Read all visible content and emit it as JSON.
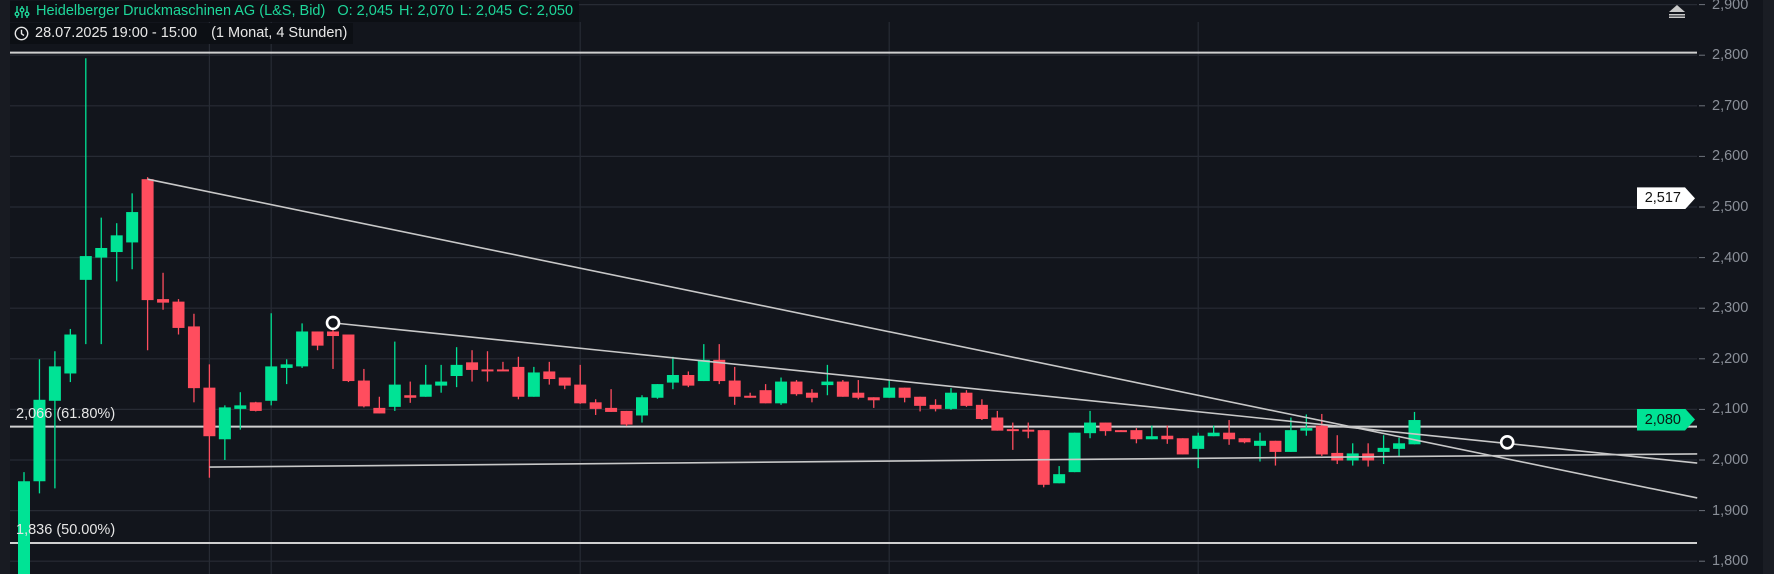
{
  "header": {
    "title": "Heidelberger Druckmaschinen AG (L&S, Bid)",
    "ohlc": {
      "open": "O: 2,045",
      "high": "H: 2,070",
      "low": "L: 2,045",
      "close": "C: 2,050"
    },
    "time_range": "28.07.2025 19:00 - 15:00",
    "period": "(1 Monat, 4 Stunden)",
    "icons": [
      "indicator-sliders-icon",
      "clock-icon",
      "collapse-triangle-icon"
    ]
  },
  "colors": {
    "up": "#00e395",
    "down": "#ff4d5e",
    "background": "#12151c",
    "grid": "#272b34",
    "drawing": "#c8c8c8",
    "title": "#1ed79a"
  },
  "price_tags": {
    "crosshair": "2,517",
    "last": "2,080"
  },
  "chart_data": {
    "type": "candlestick",
    "y_axis": {
      "range": [
        1.775,
        2.91
      ],
      "ticks": [
        "2,900",
        "2,800",
        "2,700",
        "2,600",
        "2,500",
        "2,400",
        "2,300",
        "2,200",
        "2,100",
        "2,000",
        "1,900",
        "1,800"
      ],
      "tick_values": [
        2.9,
        2.8,
        2.7,
        2.6,
        2.5,
        2.4,
        2.3,
        2.2,
        2.1,
        2.0,
        1.9,
        1.8
      ],
      "side": "right"
    },
    "grid": true,
    "time_gridlines_at_bar": [
      13,
      17,
      37,
      57,
      77
    ],
    "candles_ohlc": [
      [
        1.74,
        1.976,
        1.72,
        1.958
      ],
      [
        1.958,
        2.199,
        1.934,
        2.119
      ],
      [
        2.117,
        2.215,
        1.944,
        2.185
      ],
      [
        2.171,
        2.259,
        2.154,
        2.248
      ],
      [
        2.356,
        2.794,
        2.229,
        2.403
      ],
      [
        2.4,
        2.479,
        2.229,
        2.419
      ],
      [
        2.411,
        2.468,
        2.353,
        2.444
      ],
      [
        2.43,
        2.527,
        2.377,
        2.49
      ],
      [
        2.555,
        2.559,
        2.217,
        2.316
      ],
      [
        2.318,
        2.37,
        2.297,
        2.311
      ],
      [
        2.313,
        2.318,
        2.248,
        2.261
      ],
      [
        2.264,
        2.289,
        2.114,
        2.142
      ],
      [
        2.143,
        2.189,
        1.965,
        2.047
      ],
      [
        2.041,
        2.108,
        2.0,
        2.104
      ],
      [
        2.101,
        2.134,
        2.06,
        2.108
      ],
      [
        2.114,
        2.115,
        2.096,
        2.097
      ],
      [
        2.117,
        2.29,
        2.108,
        2.185
      ],
      [
        2.182,
        2.199,
        2.15,
        2.189
      ],
      [
        2.185,
        2.27,
        2.182,
        2.254
      ],
      [
        2.254,
        2.254,
        2.217,
        2.226
      ],
      [
        2.254,
        2.262,
        2.18,
        2.245
      ],
      [
        2.248,
        2.248,
        2.154,
        2.156
      ],
      [
        2.157,
        2.18,
        2.104,
        2.106
      ],
      [
        2.103,
        2.125,
        2.092,
        2.092
      ],
      [
        2.105,
        2.234,
        2.097,
        2.149
      ],
      [
        2.128,
        2.155,
        2.113,
        2.123
      ],
      [
        2.125,
        2.188,
        2.125,
        2.149
      ],
      [
        2.147,
        2.188,
        2.133,
        2.155
      ],
      [
        2.166,
        2.223,
        2.144,
        2.188
      ],
      [
        2.193,
        2.217,
        2.155,
        2.178
      ],
      [
        2.179,
        2.215,
        2.155,
        2.178
      ],
      [
        2.179,
        2.194,
        2.176,
        2.178
      ],
      [
        2.184,
        2.204,
        2.12,
        2.125
      ],
      [
        2.125,
        2.184,
        2.125,
        2.173
      ],
      [
        2.175,
        2.194,
        2.149,
        2.16
      ],
      [
        2.163,
        2.163,
        2.14,
        2.147
      ],
      [
        2.149,
        2.188,
        2.111,
        2.112
      ],
      [
        2.114,
        2.12,
        2.089,
        2.101
      ],
      [
        2.103,
        2.14,
        2.095,
        2.095
      ],
      [
        2.097,
        2.097,
        2.067,
        2.07
      ],
      [
        2.088,
        2.128,
        2.074,
        2.124
      ],
      [
        2.123,
        2.15,
        2.121,
        2.15
      ],
      [
        2.153,
        2.204,
        2.14,
        2.168
      ],
      [
        2.168,
        2.175,
        2.144,
        2.147
      ],
      [
        2.156,
        2.229,
        2.156,
        2.198
      ],
      [
        2.198,
        2.229,
        2.15,
        2.156
      ],
      [
        2.157,
        2.184,
        2.109,
        2.125
      ],
      [
        2.127,
        2.133,
        2.123,
        2.123
      ],
      [
        2.138,
        2.15,
        2.112,
        2.112
      ],
      [
        2.112,
        2.163,
        2.109,
        2.155
      ],
      [
        2.155,
        2.158,
        2.127,
        2.13
      ],
      [
        2.133,
        2.14,
        2.114,
        2.123
      ],
      [
        2.148,
        2.188,
        2.128,
        2.155
      ],
      [
        2.155,
        2.158,
        2.125,
        2.125
      ],
      [
        2.133,
        2.158,
        2.12,
        2.123
      ],
      [
        2.124,
        2.124,
        2.103,
        2.118
      ],
      [
        2.123,
        2.158,
        2.123,
        2.143
      ],
      [
        2.143,
        2.143,
        2.114,
        2.123
      ],
      [
        2.125,
        2.125,
        2.096,
        2.107
      ],
      [
        2.109,
        2.12,
        2.096,
        2.101
      ],
      [
        2.101,
        2.142,
        2.099,
        2.133
      ],
      [
        2.133,
        2.138,
        2.105,
        2.107
      ],
      [
        2.109,
        2.12,
        2.079,
        2.081
      ],
      [
        2.084,
        2.097,
        2.058,
        2.058
      ],
      [
        2.061,
        2.074,
        2.02,
        2.058
      ],
      [
        2.06,
        2.074,
        2.043,
        2.058
      ],
      [
        2.059,
        2.059,
        1.946,
        1.951
      ],
      [
        1.954,
        1.988,
        1.954,
        1.972
      ],
      [
        1.976,
        2.054,
        1.976,
        2.054
      ],
      [
        2.053,
        2.097,
        2.043,
        2.074
      ],
      [
        2.074,
        2.074,
        2.048,
        2.057
      ],
      [
        2.059,
        2.059,
        2.057,
        2.057
      ],
      [
        2.059,
        2.063,
        2.033,
        2.041
      ],
      [
        2.041,
        2.068,
        2.041,
        2.047
      ],
      [
        2.048,
        2.068,
        2.032,
        2.041
      ],
      [
        2.043,
        2.043,
        2.011,
        2.011
      ],
      [
        2.022,
        2.054,
        1.984,
        2.048
      ],
      [
        2.047,
        2.068,
        2.047,
        2.054
      ],
      [
        2.054,
        2.079,
        2.03,
        2.041
      ],
      [
        2.043,
        2.043,
        2.033,
        2.035
      ],
      [
        2.028,
        2.054,
        1.997,
        2.038
      ],
      [
        2.038,
        2.038,
        1.989,
        2.016
      ],
      [
        2.016,
        2.084,
        2.016,
        2.059
      ],
      [
        2.058,
        2.09,
        2.048,
        2.063
      ],
      [
        2.068,
        2.091,
        2.008,
        2.011
      ],
      [
        2.014,
        2.049,
        1.992,
        1.999
      ],
      [
        1.999,
        2.033,
        1.989,
        2.013
      ],
      [
        2.013,
        2.033,
        1.987,
        1.999
      ],
      [
        2.016,
        2.049,
        1.992,
        2.024
      ],
      [
        2.022,
        2.044,
        2.008,
        2.033
      ],
      [
        2.031,
        2.095,
        2.031,
        2.079
      ]
    ],
    "horizontal_levels": [
      {
        "price": 2.805,
        "label": ""
      },
      {
        "price": 2.066,
        "label": "2,066 (61.80%)"
      },
      {
        "price": 1.836,
        "label": "1,836 (50.00%)"
      }
    ],
    "trend_lines": [
      {
        "from": {
          "bar": 9,
          "price": 2.555
        },
        "to": {
          "bar": 109.3,
          "price": 1.925
        },
        "handle": null
      },
      {
        "from": {
          "bar": 21,
          "price": 2.271
        },
        "to": {
          "bar": 109.3,
          "price": 1.994
        },
        "handles": [
          {
            "bar": 21,
            "price": 2.271
          },
          {
            "bar": 97,
            "price": 2.035
          }
        ]
      },
      {
        "from": {
          "bar": 13,
          "price": 1.986
        },
        "to": {
          "bar": 109.3,
          "price": 2.012
        },
        "handle": null
      }
    ],
    "crosshair_price": 2.517,
    "last_price": 2.08
  }
}
